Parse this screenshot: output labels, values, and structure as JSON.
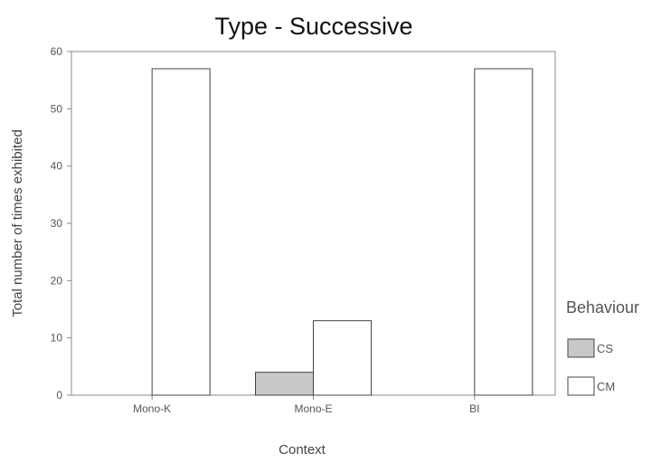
{
  "chart_data": {
    "type": "bar",
    "title": "Type - Successive",
    "xlabel": "Context",
    "ylabel": "Total number of times exhibited",
    "categories": [
      "Mono-K",
      "Mono-E",
      "BI"
    ],
    "series": [
      {
        "name": "CS",
        "values": [
          0,
          4,
          0
        ],
        "color": "#c8c8c8"
      },
      {
        "name": "CM",
        "values": [
          57,
          13,
          57
        ],
        "color": "#ffffff"
      }
    ],
    "yticks": [
      "0",
      "10",
      "20",
      "30",
      "40",
      "50",
      "60"
    ],
    "ylim": [
      0,
      60
    ],
    "grid": false,
    "legend": {
      "title": "Behaviour",
      "position": "right"
    }
  }
}
